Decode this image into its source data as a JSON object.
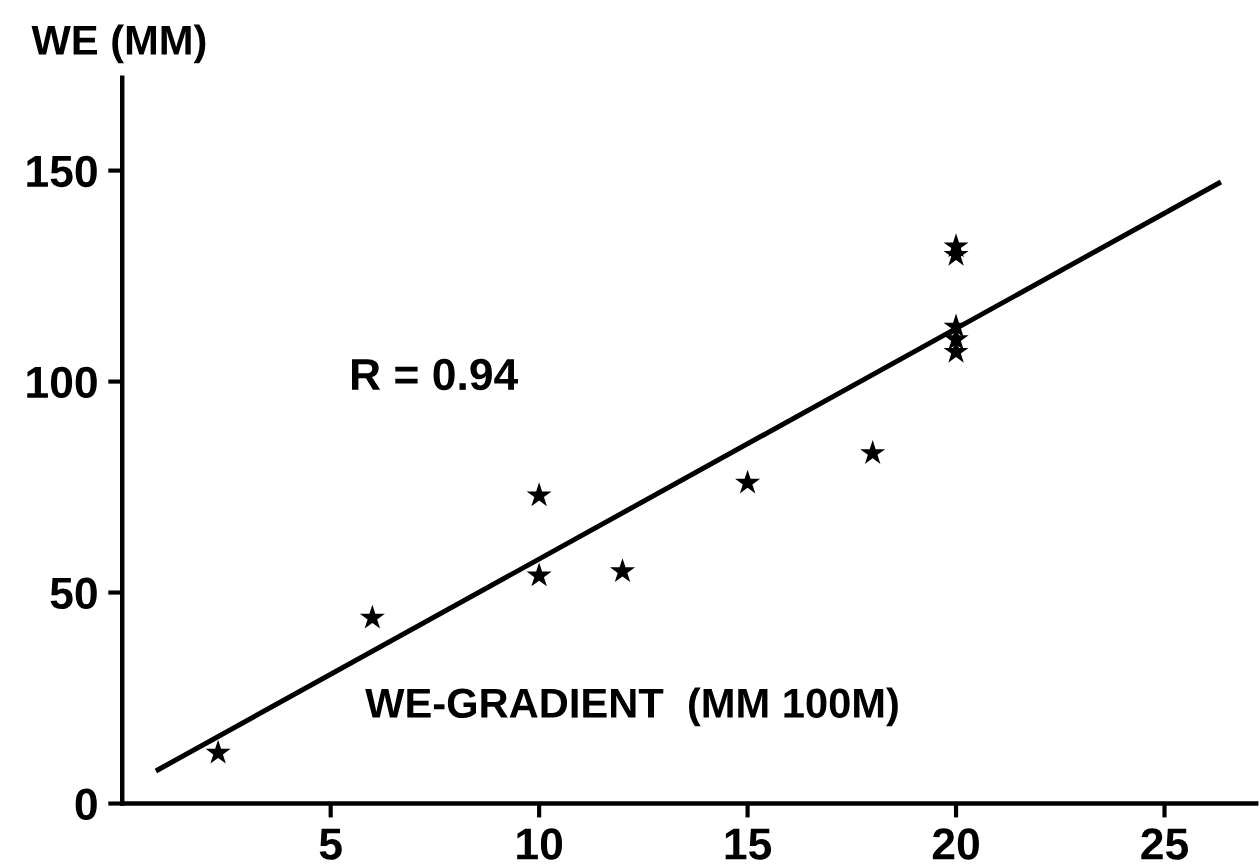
{
  "chart_data": {
    "type": "scatter",
    "xlabel": "WE-GRADIENT  (MM 100M)",
    "ylabel": "WE (MM)",
    "annotations": [
      "R = 0.94"
    ],
    "xlim": [
      0,
      27.2
    ],
    "ylim": [
      0,
      172
    ],
    "xticks": [
      5,
      10,
      15,
      20,
      25
    ],
    "yticks": [
      0,
      50,
      100,
      150
    ],
    "marker": "star",
    "grid": false,
    "series": [
      {
        "color": "#000000",
        "x": [
          2.3,
          6,
          10,
          10,
          12,
          15,
          18,
          20,
          20,
          20,
          20,
          20
        ],
        "values": [
          12,
          44,
          73,
          54,
          55,
          76,
          83,
          132,
          130,
          113,
          110,
          107
        ]
      },
      {
        "type": "line",
        "color": "#000000",
        "marker": "none",
        "x": [
          0.86,
          26.3
        ],
        "values": [
          8,
          147
        ]
      }
    ]
  }
}
